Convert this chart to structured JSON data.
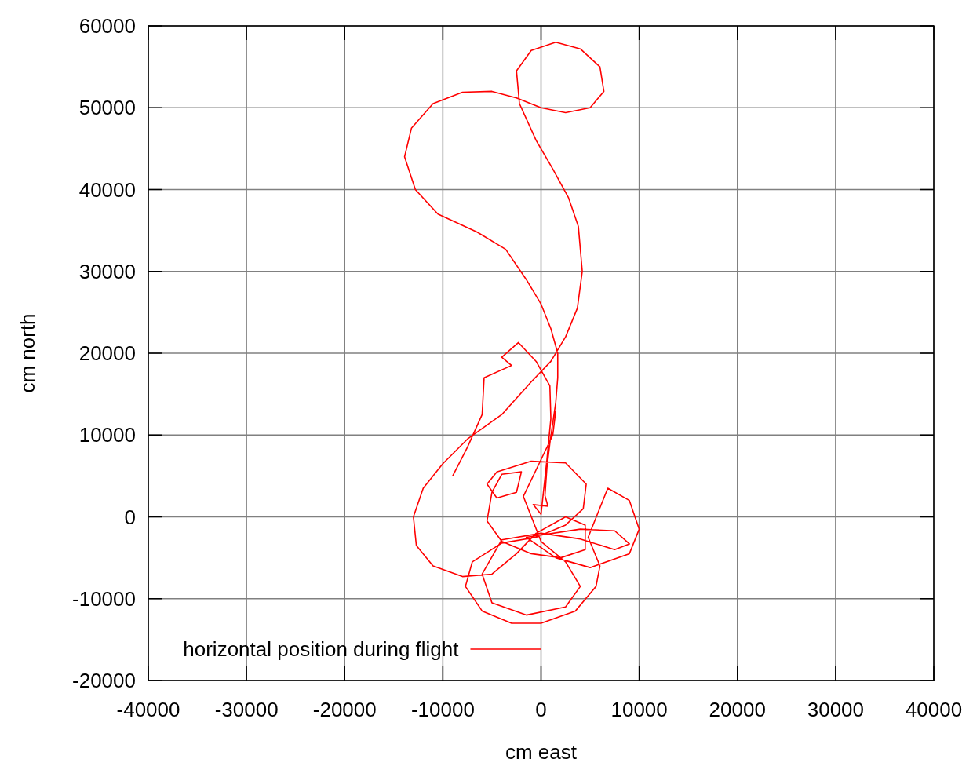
{
  "chart_data": {
    "type": "line",
    "xlabel": "cm east",
    "ylabel": "cm north",
    "xlim": [
      -40000,
      40000
    ],
    "ylim": [
      -20000,
      60000
    ],
    "xticks": [
      -40000,
      -30000,
      -20000,
      -10000,
      0,
      10000,
      20000,
      30000,
      40000
    ],
    "yticks": [
      -20000,
      -10000,
      0,
      10000,
      20000,
      30000,
      40000,
      50000,
      60000
    ],
    "grid": true,
    "legend": "bottom",
    "series": [
      {
        "name": "horizontal position during flight",
        "color": "#ff0000",
        "x": [
          -9000,
          -7500,
          -6000,
          -5800,
          -3000,
          -4000,
          -2300,
          -500,
          900,
          1000,
          600,
          0,
          -800,
          700,
          400,
          600,
          900,
          1200,
          1500,
          1700,
          1700,
          1000,
          0,
          -1500,
          -3600,
          -6500,
          -10500,
          -12800,
          -13900,
          -13200,
          -11000,
          -8000,
          -5000,
          -2500,
          0,
          2500,
          5000,
          6400,
          6000,
          4000,
          1500,
          -1000,
          -2500,
          -2200,
          -500,
          1200,
          2800,
          3800,
          4200,
          3700,
          2500,
          1000,
          -1000,
          -4000,
          -7500,
          -10000,
          -12000,
          -13000,
          -12700,
          -11000,
          -8000,
          -5000,
          -2500,
          -500,
          2500,
          4500,
          4500,
          2000,
          -1000,
          -4000,
          -5500,
          -5000,
          -4000,
          -2000,
          -2500,
          -4500,
          -5500,
          -4500,
          -1000,
          2500,
          4600,
          4300,
          2500,
          -500,
          -4000,
          -7000,
          -7700,
          -6000,
          -3000,
          0,
          3500,
          5600,
          6000,
          4800,
          6800,
          9000,
          10000,
          9000,
          5000,
          1500,
          -1500,
          4000,
          7500,
          9000,
          7500,
          4000,
          0,
          -4000,
          -6000,
          -5000,
          -1500,
          2500,
          4000,
          2500,
          0,
          -1800,
          0,
          1200,
          1500
        ],
        "values": [
          5000,
          8500,
          12500,
          17000,
          18500,
          19500,
          21300,
          19000,
          16000,
          12000,
          7000,
          300,
          1500,
          1300,
          2600,
          6000,
          9000,
          11500,
          14000,
          17000,
          20000,
          23000,
          26000,
          29000,
          32700,
          34800,
          37000,
          40000,
          44000,
          47500,
          50500,
          51900,
          52000,
          51200,
          50000,
          49400,
          50000,
          52000,
          55000,
          57200,
          58000,
          57000,
          54500,
          50500,
          46000,
          42500,
          39000,
          35500,
          30000,
          25500,
          22000,
          19000,
          16500,
          12500,
          9500,
          6500,
          3500,
          0,
          -3500,
          -6000,
          -7300,
          -7000,
          -4500,
          -2000,
          0,
          -1000,
          -4000,
          -5000,
          -4500,
          -3000,
          -500,
          3000,
          5200,
          5500,
          3000,
          2300,
          4000,
          5500,
          6800,
          6600,
          4000,
          1000,
          -1000,
          -2500,
          -3200,
          -5500,
          -8500,
          -11500,
          -13000,
          -13000,
          -11500,
          -8500,
          -6000,
          -2500,
          3500,
          2000,
          -1500,
          -4500,
          -6200,
          -5000,
          -2500,
          -1500,
          -1700,
          -3300,
          -4000,
          -2700,
          -2000,
          -2800,
          -7000,
          -10500,
          -12000,
          -11000,
          -8500,
          -5500,
          -3000,
          2500,
          7000,
          10000,
          13000
        ]
      }
    ]
  }
}
